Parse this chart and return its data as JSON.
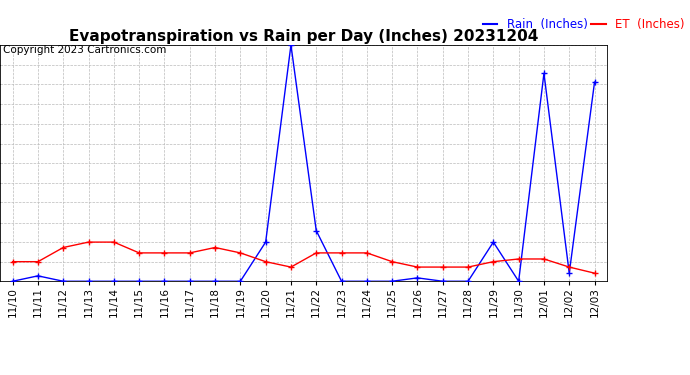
{
  "title": "Evapotranspiration vs Rain per Day (Inches) 20231204",
  "copyright": "Copyright 2023 Cartronics.com",
  "legend_rain": "Rain  (Inches)",
  "legend_et": "ET  (Inches)",
  "dates": [
    "11/10",
    "11/11",
    "11/12",
    "11/13",
    "11/14",
    "11/15",
    "11/16",
    "11/17",
    "11/18",
    "11/19",
    "11/20",
    "11/21",
    "11/22",
    "11/23",
    "11/24",
    "11/25",
    "11/26",
    "11/27",
    "11/28",
    "11/29",
    "11/30",
    "12/01",
    "12/02",
    "12/03"
  ],
  "rain": [
    0.0,
    0.008,
    0.0,
    0.0,
    0.0,
    0.0,
    0.0,
    0.0,
    0.0,
    0.0,
    0.058,
    0.35,
    0.075,
    0.0,
    0.0,
    0.0,
    0.005,
    0.0,
    0.0,
    0.058,
    0.0,
    0.308,
    0.012,
    0.295
  ],
  "et": [
    0.029,
    0.029,
    0.05,
    0.058,
    0.058,
    0.042,
    0.042,
    0.042,
    0.05,
    0.042,
    0.029,
    0.021,
    0.042,
    0.042,
    0.042,
    0.029,
    0.021,
    0.021,
    0.021,
    0.029,
    0.033,
    0.033,
    0.021,
    0.012
  ],
  "yticks": [
    0.0,
    0.029,
    0.058,
    0.087,
    0.117,
    0.146,
    0.175,
    0.204,
    0.233,
    0.262,
    0.292,
    0.321,
    0.35
  ],
  "ylim": [
    0.0,
    0.35
  ],
  "rain_color": "blue",
  "et_color": "red",
  "bg_color": "white",
  "grid_color": "#bbbbbb",
  "title_fontsize": 11,
  "copyright_fontsize": 7.5,
  "legend_fontsize": 8.5,
  "tick_fontsize": 7.5,
  "marker": "+",
  "markersize": 5
}
